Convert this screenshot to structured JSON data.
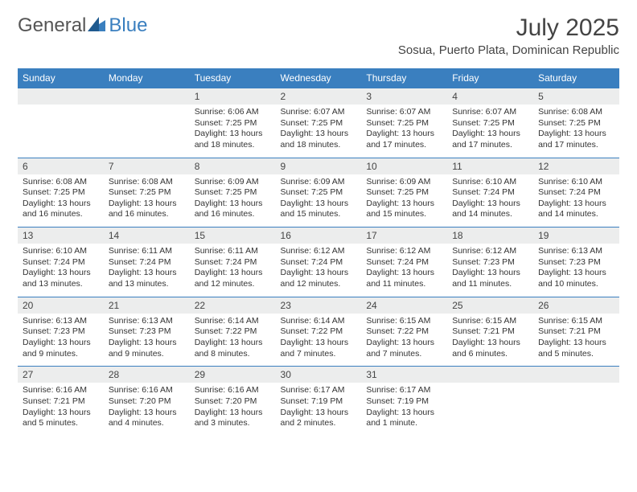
{
  "brand": {
    "general": "General",
    "blue": "Blue"
  },
  "title": "July 2025",
  "location": "Sosua, Puerto Plata, Dominican Republic",
  "colors": {
    "header_bg": "#3a7fbf",
    "daynum_bg": "#eceded",
    "week_divider": "#3a7fbf",
    "text": "#333333",
    "page_bg": "#ffffff"
  },
  "typography": {
    "month_title_size": 30,
    "location_size": 15,
    "dow_size": 12,
    "daynum_size": 12,
    "cell_size": 10.5
  },
  "days_of_week": [
    "Sunday",
    "Monday",
    "Tuesday",
    "Wednesday",
    "Thursday",
    "Friday",
    "Saturday"
  ],
  "weeks": [
    [
      null,
      null,
      {
        "n": "1",
        "sr": "6:06 AM",
        "ss": "7:25 PM",
        "dl": "13 hours and 18 minutes."
      },
      {
        "n": "2",
        "sr": "6:07 AM",
        "ss": "7:25 PM",
        "dl": "13 hours and 18 minutes."
      },
      {
        "n": "3",
        "sr": "6:07 AM",
        "ss": "7:25 PM",
        "dl": "13 hours and 17 minutes."
      },
      {
        "n": "4",
        "sr": "6:07 AM",
        "ss": "7:25 PM",
        "dl": "13 hours and 17 minutes."
      },
      {
        "n": "5",
        "sr": "6:08 AM",
        "ss": "7:25 PM",
        "dl": "13 hours and 17 minutes."
      }
    ],
    [
      {
        "n": "6",
        "sr": "6:08 AM",
        "ss": "7:25 PM",
        "dl": "13 hours and 16 minutes."
      },
      {
        "n": "7",
        "sr": "6:08 AM",
        "ss": "7:25 PM",
        "dl": "13 hours and 16 minutes."
      },
      {
        "n": "8",
        "sr": "6:09 AM",
        "ss": "7:25 PM",
        "dl": "13 hours and 16 minutes."
      },
      {
        "n": "9",
        "sr": "6:09 AM",
        "ss": "7:25 PM",
        "dl": "13 hours and 15 minutes."
      },
      {
        "n": "10",
        "sr": "6:09 AM",
        "ss": "7:25 PM",
        "dl": "13 hours and 15 minutes."
      },
      {
        "n": "11",
        "sr": "6:10 AM",
        "ss": "7:24 PM",
        "dl": "13 hours and 14 minutes."
      },
      {
        "n": "12",
        "sr": "6:10 AM",
        "ss": "7:24 PM",
        "dl": "13 hours and 14 minutes."
      }
    ],
    [
      {
        "n": "13",
        "sr": "6:10 AM",
        "ss": "7:24 PM",
        "dl": "13 hours and 13 minutes."
      },
      {
        "n": "14",
        "sr": "6:11 AM",
        "ss": "7:24 PM",
        "dl": "13 hours and 13 minutes."
      },
      {
        "n": "15",
        "sr": "6:11 AM",
        "ss": "7:24 PM",
        "dl": "13 hours and 12 minutes."
      },
      {
        "n": "16",
        "sr": "6:12 AM",
        "ss": "7:24 PM",
        "dl": "13 hours and 12 minutes."
      },
      {
        "n": "17",
        "sr": "6:12 AM",
        "ss": "7:24 PM",
        "dl": "13 hours and 11 minutes."
      },
      {
        "n": "18",
        "sr": "6:12 AM",
        "ss": "7:23 PM",
        "dl": "13 hours and 11 minutes."
      },
      {
        "n": "19",
        "sr": "6:13 AM",
        "ss": "7:23 PM",
        "dl": "13 hours and 10 minutes."
      }
    ],
    [
      {
        "n": "20",
        "sr": "6:13 AM",
        "ss": "7:23 PM",
        "dl": "13 hours and 9 minutes."
      },
      {
        "n": "21",
        "sr": "6:13 AM",
        "ss": "7:23 PM",
        "dl": "13 hours and 9 minutes."
      },
      {
        "n": "22",
        "sr": "6:14 AM",
        "ss": "7:22 PM",
        "dl": "13 hours and 8 minutes."
      },
      {
        "n": "23",
        "sr": "6:14 AM",
        "ss": "7:22 PM",
        "dl": "13 hours and 7 minutes."
      },
      {
        "n": "24",
        "sr": "6:15 AM",
        "ss": "7:22 PM",
        "dl": "13 hours and 7 minutes."
      },
      {
        "n": "25",
        "sr": "6:15 AM",
        "ss": "7:21 PM",
        "dl": "13 hours and 6 minutes."
      },
      {
        "n": "26",
        "sr": "6:15 AM",
        "ss": "7:21 PM",
        "dl": "13 hours and 5 minutes."
      }
    ],
    [
      {
        "n": "27",
        "sr": "6:16 AM",
        "ss": "7:21 PM",
        "dl": "13 hours and 5 minutes."
      },
      {
        "n": "28",
        "sr": "6:16 AM",
        "ss": "7:20 PM",
        "dl": "13 hours and 4 minutes."
      },
      {
        "n": "29",
        "sr": "6:16 AM",
        "ss": "7:20 PM",
        "dl": "13 hours and 3 minutes."
      },
      {
        "n": "30",
        "sr": "6:17 AM",
        "ss": "7:19 PM",
        "dl": "13 hours and 2 minutes."
      },
      {
        "n": "31",
        "sr": "6:17 AM",
        "ss": "7:19 PM",
        "dl": "13 hours and 1 minute."
      },
      null,
      null
    ]
  ],
  "labels": {
    "sunrise": "Sunrise:",
    "sunset": "Sunset:",
    "daylight": "Daylight:"
  }
}
